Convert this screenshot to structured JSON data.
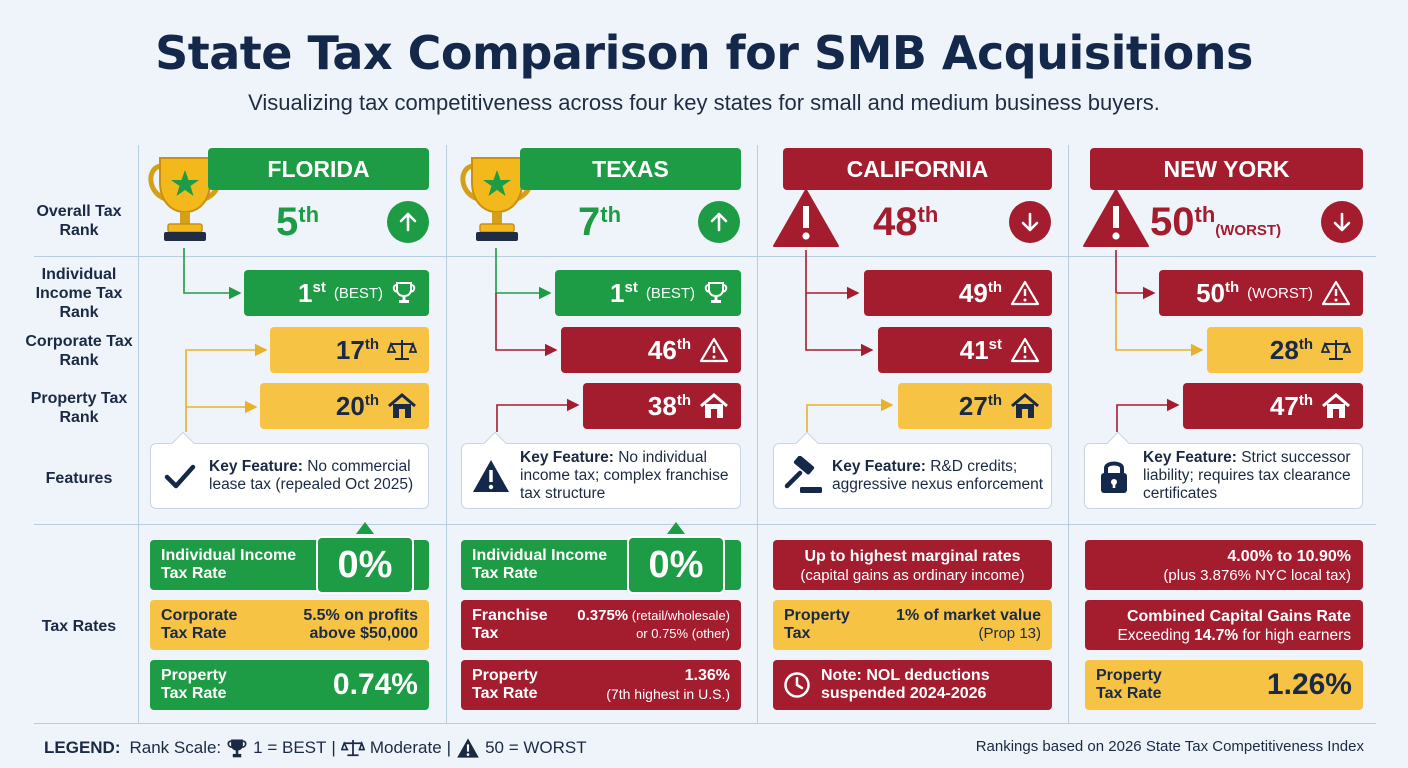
{
  "header": {
    "title": "State Tax Comparison for SMB Acquisitions",
    "subtitle": "Visualizing tax competitiveness across four key states for small and medium business buyers."
  },
  "row_labels": {
    "overall": "Overall Tax Rank",
    "individual": "Individual Income Tax Rank",
    "corporate": "Corporate Tax Rank",
    "property": "Property Tax Rank",
    "features": "Features",
    "rates": "Tax Rates"
  },
  "colors": {
    "green": "#1d9b45",
    "red": "#a31d2f",
    "yellow": "#f6c344",
    "navy": "#14284b"
  },
  "states": [
    {
      "name": "FLORIDA",
      "overall": {
        "num": "5",
        "suffix": "th",
        "trend_icon": "arrow-up-icon"
      },
      "individual": {
        "num": "1",
        "suffix": "st",
        "tag": "(BEST)",
        "icon": "trophy-icon"
      },
      "corporate": {
        "num": "17",
        "suffix": "th",
        "icon": "scale-icon"
      },
      "property": {
        "num": "20",
        "suffix": "th",
        "icon": "house-icon"
      },
      "feature": {
        "icon": "checkmark-icon",
        "label": "Key Feature:",
        "text": " No commercial lease tax (repealed Oct 2025)"
      },
      "rates": {
        "individual_l1": "Individual Income",
        "individual_l2": "Tax Rate",
        "individual_value": "0%",
        "corporate_l1": "Corporate",
        "corporate_l2": "Tax Rate",
        "corporate_v1": "5.5% on profits",
        "corporate_v2": "above $50,000",
        "property_l1": "Property",
        "property_l2": "Tax Rate",
        "property_value": "0.74%"
      }
    },
    {
      "name": "TEXAS",
      "overall": {
        "num": "7",
        "suffix": "th",
        "trend_icon": "arrow-up-icon"
      },
      "individual": {
        "num": "1",
        "suffix": "st",
        "tag": "(BEST)",
        "icon": "trophy-icon"
      },
      "corporate": {
        "num": "46",
        "suffix": "th",
        "icon": "warning-icon"
      },
      "property": {
        "num": "38",
        "suffix": "th",
        "icon": "house-icon"
      },
      "feature": {
        "icon": "warning-icon",
        "label": "Key Feature:",
        "text": " No individual income tax; complex franchise tax structure"
      },
      "rates": {
        "individual_l1": "Individual Income",
        "individual_l2": "Tax Rate",
        "individual_value": "0%",
        "franchise_l1": "Franchise",
        "franchise_l2": "Tax",
        "franchise_v1": "0.375%",
        "franchise_v1_note": " (retail/wholesale)",
        "franchise_v2": "or 0.75% (other)",
        "property_l1": "Property",
        "property_l2": "Tax Rate",
        "property_v1": "1.36%",
        "property_v2": "(7th highest in U.S.)"
      }
    },
    {
      "name": "CALIFORNIA",
      "overall": {
        "num": "48",
        "suffix": "th",
        "trend_icon": "arrow-down-icon"
      },
      "individual": {
        "num": "49",
        "suffix": "th",
        "icon": "warning-icon"
      },
      "corporate": {
        "num": "41",
        "suffix": "st",
        "icon": "warning-icon"
      },
      "property": {
        "num": "27",
        "suffix": "th",
        "icon": "house-icon"
      },
      "feature": {
        "icon": "gavel-icon",
        "label": "Key Feature:",
        "text": " R&D credits; aggressive nexus enforcement"
      },
      "rates": {
        "individual_v1": "Up to highest marginal rates",
        "individual_v2": "(capital gains as ordinary income)",
        "property_l1": "Property",
        "property_l2": "Tax",
        "property_v1": "1% of market value",
        "property_v2": "(Prop 13)",
        "note_l1": "Note: NOL deductions",
        "note_l2": "suspended 2024-2026"
      }
    },
    {
      "name": "NEW YORK",
      "overall": {
        "num": "50",
        "suffix": "th",
        "tag": "(WORST)",
        "trend_icon": "arrow-down-icon"
      },
      "individual": {
        "num": "50",
        "suffix": "th",
        "tag": "(WORST)",
        "icon": "warning-icon"
      },
      "corporate": {
        "num": "28",
        "suffix": "th",
        "icon": "scale-icon"
      },
      "property": {
        "num": "47",
        "suffix": "th",
        "icon": "house-icon"
      },
      "feature": {
        "icon": "lock-icon",
        "label": "Key Feature:",
        "text": " Strict successor liability; requires tax clearance certificates"
      },
      "rates": {
        "individual_v1": "4.00% to 10.90%",
        "individual_v2": "(plus 3.876% NYC local tax)",
        "capgains_v1": "Combined Capital Gains Rate",
        "capgains_v2a": "Exceeding ",
        "capgains_v2b": "14.7%",
        "capgains_v2c": " for high earners",
        "property_l1": "Property",
        "property_l2": "Tax Rate",
        "property_value": "1.26%"
      }
    }
  ],
  "legend": {
    "label": "LEGEND:",
    "scale": "Rank Scale:",
    "best": "1 = BEST",
    "moderate": "Moderate",
    "worst": "50 = WORST",
    "sep": "|"
  },
  "source": "Rankings based on 2026 State Tax Competitiveness Index"
}
